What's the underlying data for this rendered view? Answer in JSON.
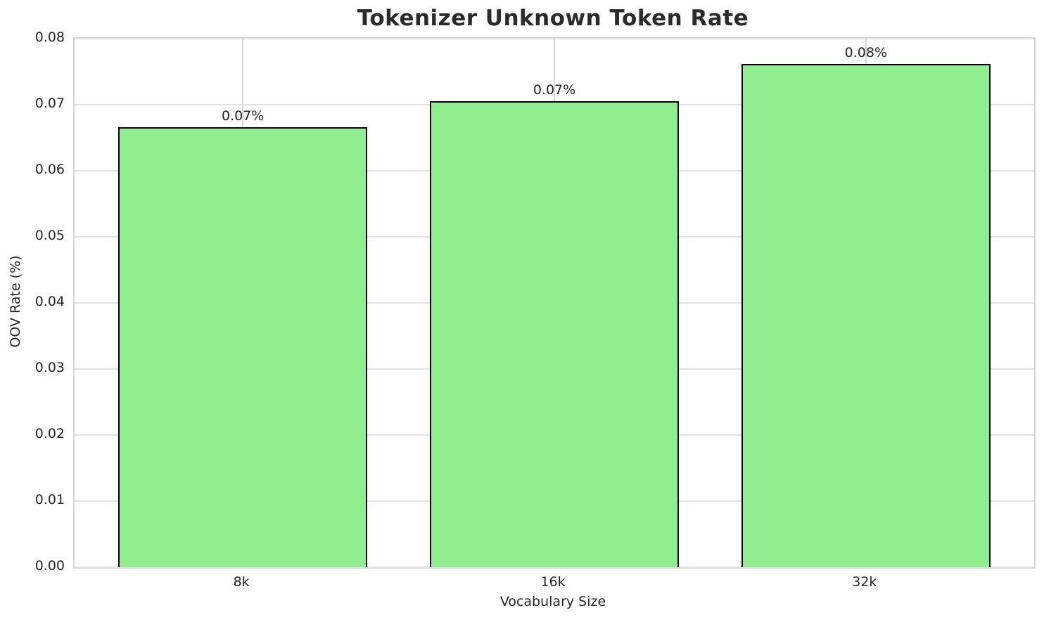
{
  "chart_data": {
    "type": "bar",
    "title": "Tokenizer Unknown Token Rate",
    "xlabel": "Vocabulary Size",
    "ylabel": "OOV Rate (%)",
    "categories": [
      "8k",
      "16k",
      "32k"
    ],
    "values": [
      0.0666,
      0.0705,
      0.0762
    ],
    "bar_labels": [
      "0.07%",
      "0.07%",
      "0.08%"
    ],
    "ylim": [
      0,
      0.08
    ],
    "ytick_labels": [
      "0.00",
      "0.01",
      "0.02",
      "0.03",
      "0.04",
      "0.05",
      "0.06",
      "0.07",
      "0.08"
    ],
    "grid": "both",
    "legend": "none",
    "bar_width_fraction": 0.8,
    "colors": {
      "bar_fill": "#90ee90",
      "bar_edge": "#000000",
      "grid_h": "#e2e2e2",
      "grid_v": "#d8d8d8",
      "spine": "#d4d4d4",
      "text": "#262626",
      "title": "#2b2b2b",
      "background": "#ffffff"
    }
  }
}
